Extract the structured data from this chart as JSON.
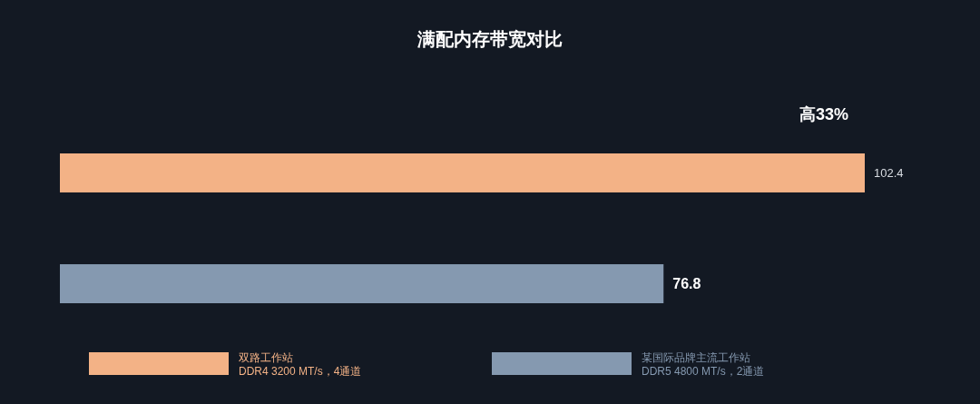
{
  "chart_data": {
    "type": "bar",
    "orientation": "horizontal",
    "stacked": true,
    "title": "满配内存带宽对比",
    "categories": [
      null,
      null
    ],
    "series": [
      {
        "name": "双路工作站\nDDR4 3200 MT/s，4通道",
        "color": "#f3b286",
        "values": [
          102.4,
          null
        ],
        "value_labels": [
          "102.4",
          null
        ]
      },
      {
        "name": "某国际品牌主流工作站\nDDR5 4800 MT/s，2通道",
        "color": "#8599b0",
        "values": [
          null,
          76.8
        ],
        "value_labels": [
          null,
          "76.8"
        ]
      }
    ],
    "annotations": [
      "高33%"
    ],
    "legend": "bottom"
  }
}
